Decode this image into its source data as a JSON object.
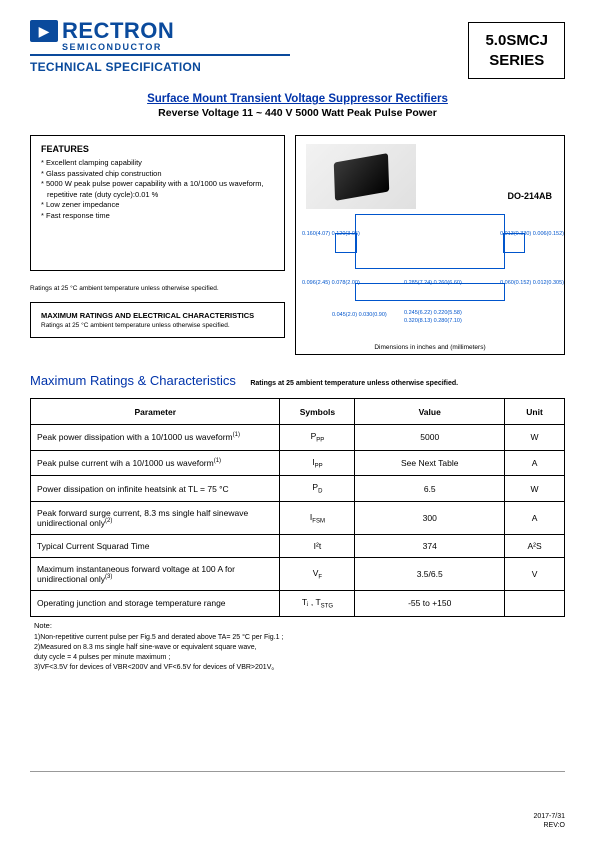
{
  "header": {
    "brand": "RECTRON",
    "brand_sub": "SEMICONDUCTOR",
    "tech_spec": "TECHNICAL SPECIFICATION",
    "series_line1": "5.0SMCJ",
    "series_line2": "SERIES"
  },
  "title": {
    "main": "Surface Mount Transient Voltage Suppressor Rectifiers",
    "sub": "Reverse Voltage 11 ~ 440 V  5000 Watt Peak Pulse Power"
  },
  "features": {
    "heading": "FEATURES",
    "items": [
      "Excellent clamping capability",
      "Glass passivated chip construction",
      "5000 W peak pulse power capability with a 10/1000 us waveform, repetitive rate (duty cycle):0.01 %",
      "Low zener impedance",
      "Fast response time"
    ],
    "rating_note": "Ratings at 25 °C ambient temperature unless otherwise specified."
  },
  "max_box": {
    "title": "MAXIMUM RATINGS AND ELECTRICAL CHARACTERISTICS",
    "sub": "Ratings at 25 °C ambient temperature unless otherwise specified."
  },
  "package": {
    "label": "DO-214AB",
    "footer": "Dimensions in inches and (millimeters)",
    "dims": {
      "d1": "0.160(4.07)\n0.120(3.05)",
      "d2": "0.013(0.330)\n0.006(0.152)",
      "d3": "0.285(7.24)\n0.260(6.60)",
      "d4": "0.096(2.45)\n0.078(2.00)",
      "d5": "0.045(2.0)\n0.030(0.90)",
      "d6": "0.060(0.152)\n0.012(0.305)",
      "d7": "0.320(8.13)\n0.280(7.10)",
      "d8": "0.245(6.22)\n0.220(5.58)"
    }
  },
  "section": {
    "title": "Maximum Ratings & Characteristics",
    "note": "Ratings at 25   ambient temperature unless otherwise specified."
  },
  "table": {
    "headers": [
      "Parameter",
      "Symbols",
      "Value",
      "Unit"
    ],
    "rows": [
      {
        "param": "Peak power dissipation with a 10/1000 us waveform",
        "sup": "(1)",
        "sym": "P",
        "sub": "PP",
        "val": "5000",
        "unit": "W"
      },
      {
        "param": "Peak pulse current wih a 10/1000 us waveform",
        "sup": "(1)",
        "sym": "I",
        "sub": "PP",
        "val": "See Next Table",
        "unit": "A"
      },
      {
        "param": "Power dissipation on infinite heatsink at TL = 75 °C",
        "sup": "",
        "sym": "P",
        "sub": "D",
        "val": "6.5",
        "unit": "W"
      },
      {
        "param": "Peak forward surge current, 8.3 ms single half sinewave unidirectional only",
        "sup": "(2)",
        "sym": "I",
        "sub": "FSM",
        "val": "300",
        "unit": "A"
      },
      {
        "param": "Typical Current Squarad Time",
        "sup": "",
        "sym": "I²t",
        "sub": "",
        "val": "374",
        "unit": "A²S"
      },
      {
        "param": "Maximum instantaneous forward voltage at 100 A for unidirectional only",
        "sup": "(3)",
        "sym": "V",
        "sub": "F",
        "val": "3.5/6.5",
        "unit": "V"
      },
      {
        "param": "Operating junction and storage temperature range",
        "sup": "",
        "sym": "Tⱼ , T",
        "sub": "STG",
        "val": "-55 to +150",
        "unit": ""
      }
    ]
  },
  "notes": {
    "head": "Note:",
    "lines": [
      "1)Non-repetitive current pulse per Fig.5 and derated above TA= 25 °C per Fig.1 ;",
      "2)Measured on 8.3 ms single half sine-wave or equivalent square wave,",
      "   duty cycle = 4 pulses per minute maximum ;",
      "3)VF<3.5V for devices of VBR<200V and VF<6.5V for devices of VBR>201V。"
    ]
  },
  "footer": {
    "date": "2017-7/31",
    "rev": "REV:O"
  },
  "colors": {
    "brand_blue": "#0a4a9c",
    "link_blue": "#0033aa",
    "mech_blue": "#0055cc"
  }
}
